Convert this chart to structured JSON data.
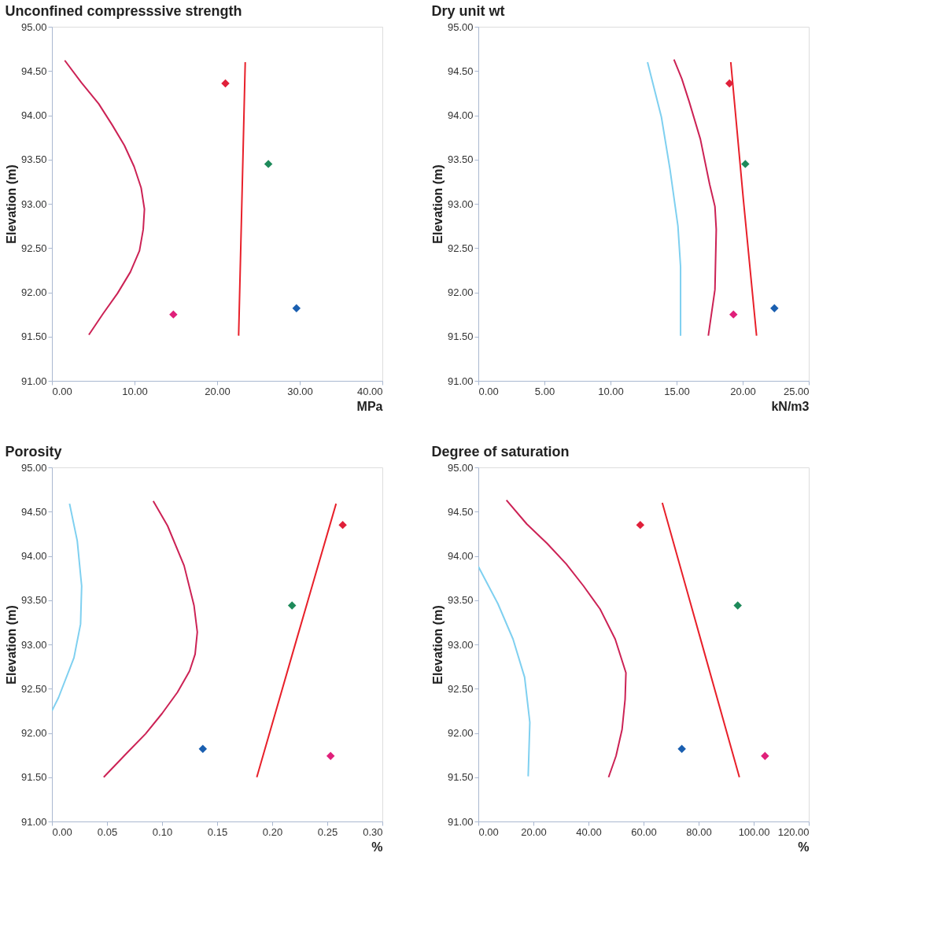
{
  "chart_data": [
    {
      "type": "line",
      "title": "Unconfined compresssive strength",
      "xlabel": "MPa",
      "ylabel": "Elevation (m)",
      "grid": false,
      "xlim": [
        0,
        40
      ],
      "xticks": [
        {
          "value": 0,
          "label": "0.00"
        },
        {
          "value": 10,
          "label": "10.00"
        },
        {
          "value": 20,
          "label": "20.00"
        },
        {
          "value": 30,
          "label": "30.00"
        },
        {
          "value": 40,
          "label": "40.00"
        }
      ],
      "ylim": [
        91,
        95
      ],
      "yticks": [
        {
          "value": 91,
          "label": "91.00"
        },
        {
          "value": 91.5,
          "label": "91.50"
        },
        {
          "value": 92,
          "label": "92.00"
        },
        {
          "value": 92.5,
          "label": "92.50"
        },
        {
          "value": 93,
          "label": "93.00"
        },
        {
          "value": 93.5,
          "label": "93.50"
        },
        {
          "value": 94,
          "label": "94.00"
        },
        {
          "value": 94.5,
          "label": "94.50"
        },
        {
          "value": 95,
          "label": "95.00"
        }
      ],
      "series": [
        {
          "type": "line",
          "color": "#cc2255",
          "x": [
            1.55,
            3.56,
            5.66,
            7.3,
            8.77,
            9.95,
            10.8,
            11.2,
            11.05,
            10.6,
            9.5,
            7.95,
            6.2,
            4.47
          ],
          "values": [
            94.62,
            94.37,
            94.13,
            93.89,
            93.66,
            93.42,
            93.18,
            92.94,
            92.71,
            92.47,
            92.23,
            91.99,
            91.76,
            91.52
          ]
        },
        {
          "type": "line",
          "color": "#e8202a",
          "x": [
            23.4,
            23.0,
            22.6
          ],
          "values": [
            94.6,
            93.05,
            91.51
          ]
        },
        {
          "type": "scatter",
          "marker": "diamond",
          "color": "#e0203a",
          "x": [
            21.0
          ],
          "values": [
            94.36
          ]
        },
        {
          "type": "scatter",
          "marker": "diamond",
          "color": "#1e8a5a",
          "x": [
            26.2
          ],
          "values": [
            93.45
          ]
        },
        {
          "type": "scatter",
          "marker": "diamond",
          "color": "#1a5fb0",
          "x": [
            29.6
          ],
          "values": [
            91.82
          ]
        },
        {
          "type": "scatter",
          "marker": "diamond",
          "color": "#e0207a",
          "x": [
            14.7
          ],
          "values": [
            91.75
          ]
        }
      ]
    },
    {
      "type": "line",
      "title": "Dry unit wt",
      "xlabel": "kN/m3",
      "ylabel": "Elevation (m)",
      "grid": false,
      "xlim": [
        0,
        25
      ],
      "xticks": [
        {
          "value": 0,
          "label": "0.00"
        },
        {
          "value": 5,
          "label": "5.00"
        },
        {
          "value": 10,
          "label": "10.00"
        },
        {
          "value": 15,
          "label": "15.00"
        },
        {
          "value": 20,
          "label": "20.00"
        },
        {
          "value": 25,
          "label": "25.00"
        }
      ],
      "ylim": [
        91,
        95
      ],
      "yticks": [
        {
          "value": 91,
          "label": "91.00"
        },
        {
          "value": 91.5,
          "label": "91.50"
        },
        {
          "value": 92,
          "label": "92.00"
        },
        {
          "value": 92.5,
          "label": "92.50"
        },
        {
          "value": 93,
          "label": "93.00"
        },
        {
          "value": 93.5,
          "label": "93.50"
        },
        {
          "value": 94,
          "label": "94.00"
        },
        {
          "value": 94.5,
          "label": "94.50"
        },
        {
          "value": 95,
          "label": "95.00"
        }
      ],
      "series": [
        {
          "type": "line",
          "color": "#7fd0f0",
          "x": [
            12.8,
            13.85,
            14.5,
            15.1,
            15.3,
            15.3
          ],
          "values": [
            94.6,
            93.98,
            93.39,
            92.75,
            92.29,
            91.51
          ]
        },
        {
          "type": "line",
          "color": "#cc2255",
          "x": [
            14.8,
            15.4,
            15.96,
            16.8,
            17.5,
            17.9,
            18.0,
            17.9,
            17.4
          ],
          "values": [
            94.63,
            94.41,
            94.15,
            93.73,
            93.22,
            92.97,
            92.71,
            92.03,
            91.51
          ]
        },
        {
          "type": "line",
          "color": "#e8202a",
          "x": [
            19.1,
            20.05,
            21.05
          ],
          "values": [
            94.6,
            93.05,
            91.51
          ]
        },
        {
          "type": "scatter",
          "marker": "diamond",
          "color": "#e0203a",
          "x": [
            19.0
          ],
          "values": [
            94.36
          ]
        },
        {
          "type": "scatter",
          "marker": "diamond",
          "color": "#1e8a5a",
          "x": [
            20.2
          ],
          "values": [
            93.45
          ]
        },
        {
          "type": "scatter",
          "marker": "diamond",
          "color": "#1a5fb0",
          "x": [
            22.4
          ],
          "values": [
            91.82
          ]
        },
        {
          "type": "scatter",
          "marker": "diamond",
          "color": "#e0207a",
          "x": [
            19.3
          ],
          "values": [
            91.75
          ]
        }
      ]
    },
    {
      "type": "line",
      "title": "Porosity",
      "xlabel": "%",
      "ylabel": "Elevation (m)",
      "grid": false,
      "xlim": [
        0,
        0.3
      ],
      "xticks": [
        {
          "value": 0,
          "label": "0.00"
        },
        {
          "value": 0.05,
          "label": "0.05"
        },
        {
          "value": 0.1,
          "label": "0.10"
        },
        {
          "value": 0.15,
          "label": "0.15"
        },
        {
          "value": 0.2,
          "label": "0.20"
        },
        {
          "value": 0.25,
          "label": "0.25"
        },
        {
          "value": 0.3,
          "label": "0.30"
        }
      ],
      "ylim": [
        91,
        95
      ],
      "yticks": [
        {
          "value": 91,
          "label": "91.00"
        },
        {
          "value": 91.5,
          "label": "91.50"
        },
        {
          "value": 92,
          "label": "92.00"
        },
        {
          "value": 92.5,
          "label": "92.50"
        },
        {
          "value": 93,
          "label": "93.00"
        },
        {
          "value": 93.5,
          "label": "93.50"
        },
        {
          "value": 94,
          "label": "94.00"
        },
        {
          "value": 94.5,
          "label": "94.50"
        },
        {
          "value": 95,
          "label": "95.00"
        }
      ],
      "series": [
        {
          "type": "line",
          "color": "#7fd0f0",
          "x": [
            0.016,
            0.023,
            0.027,
            0.026,
            0.02,
            0.006,
            0.0
          ],
          "values": [
            94.59,
            94.17,
            93.66,
            93.23,
            92.85,
            92.4,
            92.25
          ]
        },
        {
          "type": "line",
          "color": "#cc2255",
          "x": [
            0.092,
            0.105,
            0.12,
            0.129,
            0.132,
            0.13,
            0.125,
            0.114,
            0.1,
            0.085,
            0.067,
            0.047
          ],
          "values": [
            94.62,
            94.34,
            93.89,
            93.44,
            93.14,
            92.89,
            92.7,
            92.46,
            92.22,
            91.99,
            91.76,
            91.5
          ]
        },
        {
          "type": "line",
          "color": "#e8202a",
          "x": [
            0.258,
            0.222,
            0.186
          ],
          "values": [
            94.59,
            93.05,
            91.5
          ]
        },
        {
          "type": "scatter",
          "marker": "diamond",
          "color": "#e0203a",
          "x": [
            0.264
          ],
          "values": [
            94.35
          ]
        },
        {
          "type": "scatter",
          "marker": "diamond",
          "color": "#1e8a5a",
          "x": [
            0.218
          ],
          "values": [
            93.44
          ]
        },
        {
          "type": "scatter",
          "marker": "diamond",
          "color": "#1a5fb0",
          "x": [
            0.137
          ],
          "values": [
            91.82
          ]
        },
        {
          "type": "scatter",
          "marker": "diamond",
          "color": "#e0207a",
          "x": [
            0.253
          ],
          "values": [
            91.74
          ]
        }
      ]
    },
    {
      "type": "line",
      "title": "Degree of saturation",
      "xlabel": "%",
      "ylabel": "Elevation (m)",
      "grid": false,
      "xlim": [
        0,
        120
      ],
      "xticks": [
        {
          "value": 0,
          "label": "0.00"
        },
        {
          "value": 20,
          "label": "20.00"
        },
        {
          "value": 40,
          "label": "40.00"
        },
        {
          "value": 60,
          "label": "60.00"
        },
        {
          "value": 80,
          "label": "80.00"
        },
        {
          "value": 100,
          "label": "100.00"
        },
        {
          "value": 120,
          "label": "120.00"
        }
      ],
      "ylim": [
        91,
        95
      ],
      "yticks": [
        {
          "value": 91,
          "label": "91.00"
        },
        {
          "value": 91.5,
          "label": "91.50"
        },
        {
          "value": 92,
          "label": "92.00"
        },
        {
          "value": 92.5,
          "label": "92.50"
        },
        {
          "value": 93,
          "label": "93.00"
        },
        {
          "value": 93.5,
          "label": "93.50"
        },
        {
          "value": 94,
          "label": "94.00"
        },
        {
          "value": 94.5,
          "label": "94.50"
        },
        {
          "value": 95,
          "label": "95.00"
        }
      ],
      "series": [
        {
          "type": "line",
          "color": "#7fd0f0",
          "x": [
            0.0,
            7.1,
            12.6,
            16.8,
            18.7,
            18.1
          ],
          "values": [
            93.88,
            93.46,
            93.06,
            92.63,
            92.12,
            91.51
          ]
        },
        {
          "type": "line",
          "color": "#cc2255",
          "x": [
            10.2,
            17.6,
            25.0,
            31.9,
            38.2,
            44.2,
            49.7,
            53.6,
            53.3,
            52.2,
            50.0,
            47.3
          ],
          "values": [
            94.63,
            94.36,
            94.14,
            93.91,
            93.66,
            93.4,
            93.06,
            92.68,
            92.38,
            92.04,
            91.74,
            91.5
          ]
        },
        {
          "type": "line",
          "color": "#e8202a",
          "x": [
            66.8,
            80.8,
            94.8
          ],
          "values": [
            94.6,
            93.05,
            91.5
          ]
        },
        {
          "type": "scatter",
          "marker": "diamond",
          "color": "#e0203a",
          "x": [
            58.8
          ],
          "values": [
            94.35
          ]
        },
        {
          "type": "scatter",
          "marker": "diamond",
          "color": "#1e8a5a",
          "x": [
            94.2
          ],
          "values": [
            93.44
          ]
        },
        {
          "type": "scatter",
          "marker": "diamond",
          "color": "#1a5fb0",
          "x": [
            73.9
          ],
          "values": [
            91.82
          ]
        },
        {
          "type": "scatter",
          "marker": "diamond",
          "color": "#e0207a",
          "x": [
            104.1
          ],
          "values": [
            91.74
          ]
        }
      ]
    }
  ]
}
